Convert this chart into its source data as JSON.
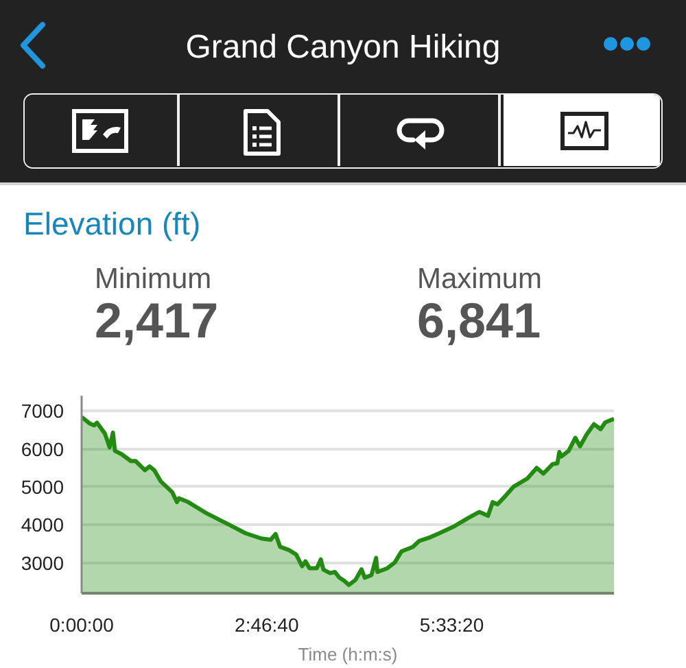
{
  "chart_data": {
    "type": "area",
    "title": "Grand Canyon Hiking",
    "subtitle": "Elevation (ft)",
    "xlabel": "Time (h:m:s)",
    "annotations": [
      "Minimum",
      "2,417",
      "Maximum",
      "6,841"
    ],
    "x": [
      0,
      0.12,
      0.19,
      0.23,
      0.35,
      0.42,
      0.47,
      0.5,
      0.6,
      0.74,
      0.81,
      0.95,
      1.02,
      1.09,
      1.19,
      1.36,
      1.43,
      1.46,
      1.6,
      1.88,
      2.22,
      2.46,
      2.7,
      2.84,
      2.91,
      2.98,
      3.11,
      3.22,
      3.31,
      3.36,
      3.42,
      3.53,
      3.59,
      3.63,
      3.73,
      3.8,
      3.87,
      3.94,
      4.01,
      4.11,
      4.2,
      4.25,
      4.35,
      4.42,
      4.44,
      4.59,
      4.7,
      4.8,
      4.97,
      5.07,
      5.21,
      5.38,
      5.59,
      5.8,
      5.97,
      6.1,
      6.17,
      6.24,
      6.35,
      6.48,
      6.69,
      6.83,
      6.93,
      7.07,
      7.14,
      7.17,
      7.2,
      7.31,
      7.41,
      7.48,
      7.58,
      7.69,
      7.79,
      7.86,
      7.99
    ],
    "series": [
      {
        "color": "#238b12",
        "values": [
          6840,
          6670,
          6620,
          6690,
          6400,
          6040,
          6430,
          5950,
          5860,
          5680,
          5680,
          5440,
          5540,
          5440,
          5140,
          4860,
          4600,
          4700,
          4600,
          4300,
          4000,
          3780,
          3640,
          3610,
          3760,
          3420,
          3340,
          3220,
          2910,
          3040,
          2860,
          2860,
          3090,
          2820,
          2730,
          2760,
          2610,
          2530,
          2420,
          2550,
          2830,
          2610,
          2680,
          3130,
          2760,
          2860,
          3010,
          3300,
          3420,
          3580,
          3660,
          3790,
          3960,
          4180,
          4340,
          4240,
          4600,
          4540,
          4740,
          5000,
          5220,
          5500,
          5350,
          5600,
          5620,
          5920,
          5800,
          5950,
          6290,
          6070,
          6380,
          6650,
          6520,
          6700,
          6790
        ]
      }
    ],
    "xlim": [
      0,
      7.99
    ],
    "xticks": [
      {
        "value": 0,
        "label": "0:00:00"
      },
      {
        "value": 2.7778,
        "label": "2:46:40"
      },
      {
        "value": 5.5556,
        "label": "5:33:20"
      }
    ],
    "ylim": [
      2200,
      7400
    ],
    "yticks": [
      3000,
      4000,
      5000,
      6000,
      7000
    ],
    "grid": "y"
  }
}
